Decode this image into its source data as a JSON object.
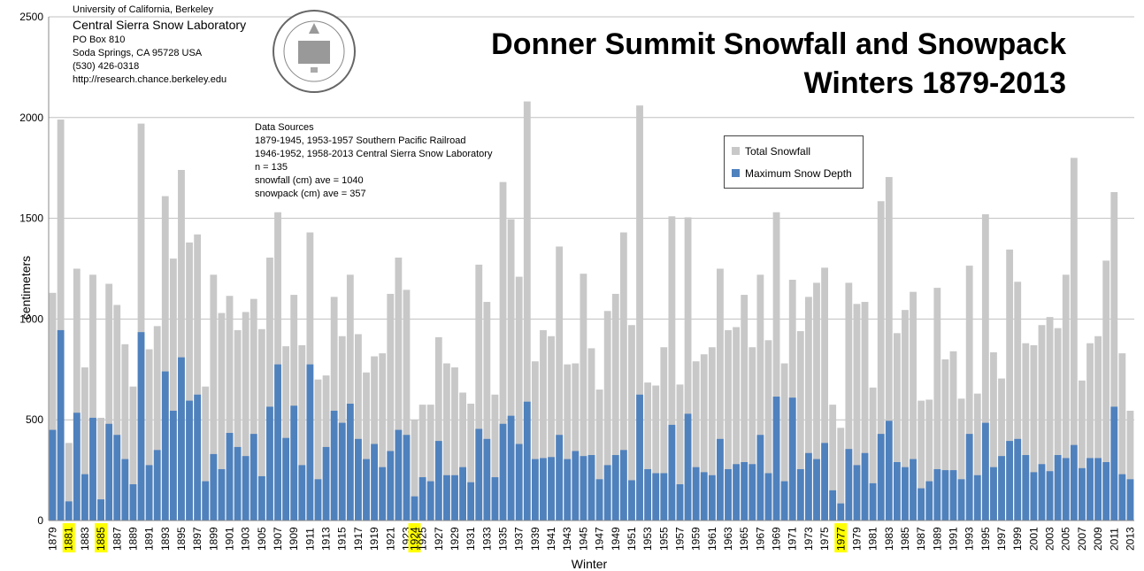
{
  "title_line1": "Donner Summit Snowfall and Snowpack",
  "title_line2": "Winters 1879-2013",
  "org": {
    "line1": "University of California, Berkeley",
    "line2": "Central Sierra Snow Laboratory",
    "line3": "PO Box 810",
    "line4": "Soda Springs, CA 95728 USA",
    "line5": "(530) 426-0318",
    "line6": "http://research.chance.berkeley.edu"
  },
  "sources": {
    "heading": "Data Sources",
    "line1": "1879-1945, 1953-1957 Southern Pacific Railroad",
    "line2": "1946-1952, 1958-2013 Central Sierra Snow Laboratory",
    "line3": "n = 135",
    "line4": "snowfall (cm) ave = 1040",
    "line5": "snowpack (cm) ave = 357"
  },
  "chart_data": {
    "type": "bar",
    "xlabel": "Winter",
    "ylabel": "centimeters",
    "ylim": [
      0,
      2500
    ],
    "yticks": [
      0,
      500,
      1000,
      1500,
      2000,
      2500
    ],
    "grid": true,
    "legend_position": "top-right",
    "highlighted_years": [
      1881,
      1885,
      1924,
      1977
    ],
    "categories": [
      1879,
      1880,
      1881,
      1882,
      1883,
      1884,
      1885,
      1886,
      1887,
      1888,
      1889,
      1890,
      1891,
      1892,
      1893,
      1894,
      1895,
      1896,
      1897,
      1898,
      1899,
      1900,
      1901,
      1902,
      1903,
      1904,
      1905,
      1906,
      1907,
      1908,
      1909,
      1910,
      1911,
      1912,
      1913,
      1914,
      1915,
      1916,
      1917,
      1918,
      1919,
      1920,
      1921,
      1922,
      1923,
      1924,
      1925,
      1926,
      1927,
      1928,
      1929,
      1930,
      1931,
      1932,
      1933,
      1934,
      1935,
      1936,
      1937,
      1938,
      1939,
      1940,
      1941,
      1942,
      1943,
      1944,
      1945,
      1946,
      1947,
      1948,
      1949,
      1950,
      1951,
      1952,
      1953,
      1954,
      1955,
      1956,
      1957,
      1958,
      1959,
      1960,
      1961,
      1962,
      1963,
      1964,
      1965,
      1966,
      1967,
      1968,
      1969,
      1970,
      1971,
      1972,
      1973,
      1974,
      1975,
      1976,
      1977,
      1978,
      1979,
      1980,
      1981,
      1982,
      1983,
      1984,
      1985,
      1986,
      1987,
      1988,
      1989,
      1990,
      1991,
      1992,
      1993,
      1994,
      1995,
      1996,
      1997,
      1998,
      1999,
      2000,
      2001,
      2002,
      2003,
      2004,
      2005,
      2006,
      2007,
      2008,
      2009,
      2010,
      2011,
      2012,
      2013
    ],
    "series": [
      {
        "name": "Total Snowfall",
        "color": "#c8c8c8",
        "values": [
          1130,
          1990,
          385,
          1250,
          760,
          1220,
          510,
          1175,
          1070,
          875,
          665,
          1970,
          850,
          965,
          1610,
          1300,
          1740,
          1380,
          1420,
          665,
          1220,
          1030,
          1115,
          945,
          1035,
          1100,
          950,
          1305,
          1530,
          865,
          1120,
          870,
          1430,
          700,
          720,
          1110,
          915,
          1220,
          925,
          735,
          815,
          830,
          1125,
          1305,
          1145,
          500,
          575,
          575,
          910,
          780,
          760,
          635,
          580,
          1270,
          1085,
          625,
          1680,
          1495,
          1210,
          2080,
          790,
          945,
          915,
          1360,
          775,
          780,
          1225,
          855,
          650,
          1040,
          1125,
          1430,
          970,
          2060,
          685,
          670,
          860,
          1510,
          675,
          1505,
          790,
          825,
          860,
          1250,
          945,
          960,
          1120,
          860,
          1220,
          895,
          1530,
          780,
          1195,
          940,
          1110,
          1180,
          1255,
          575,
          460,
          1180,
          1075,
          1085,
          660,
          1585,
          1705,
          930,
          1045,
          1135,
          595,
          600,
          1155,
          800,
          840,
          605,
          1265,
          630,
          1520,
          835,
          705,
          1345,
          1185,
          880,
          870,
          970,
          1010,
          955,
          1220,
          1800,
          695,
          880,
          915,
          1290,
          1630,
          830,
          545
        ]
      },
      {
        "name": "Maximum Snow Depth",
        "color": "#4f81bd",
        "values": [
          450,
          945,
          95,
          535,
          230,
          510,
          105,
          480,
          425,
          305,
          180,
          935,
          275,
          350,
          740,
          545,
          810,
          595,
          625,
          195,
          330,
          255,
          435,
          365,
          320,
          430,
          220,
          565,
          775,
          410,
          570,
          275,
          775,
          205,
          365,
          545,
          485,
          580,
          405,
          305,
          380,
          265,
          345,
          450,
          425,
          120,
          215,
          195,
          395,
          225,
          225,
          265,
          190,
          455,
          405,
          215,
          480,
          520,
          380,
          590,
          305,
          310,
          315,
          425,
          305,
          345,
          320,
          325,
          205,
          275,
          325,
          350,
          200,
          625,
          255,
          235,
          235,
          475,
          180,
          530,
          265,
          240,
          225,
          405,
          255,
          280,
          290,
          280,
          425,
          235,
          615,
          195,
          610,
          255,
          335,
          305,
          385,
          150,
          85,
          355,
          275,
          335,
          185,
          430,
          495,
          290,
          265,
          305,
          160,
          195,
          255,
          250,
          250,
          205,
          430,
          225,
          485,
          265,
          320,
          395,
          405,
          325,
          240,
          280,
          245,
          325,
          310,
          375,
          260,
          310,
          310,
          290,
          565,
          230,
          205
        ]
      }
    ]
  }
}
